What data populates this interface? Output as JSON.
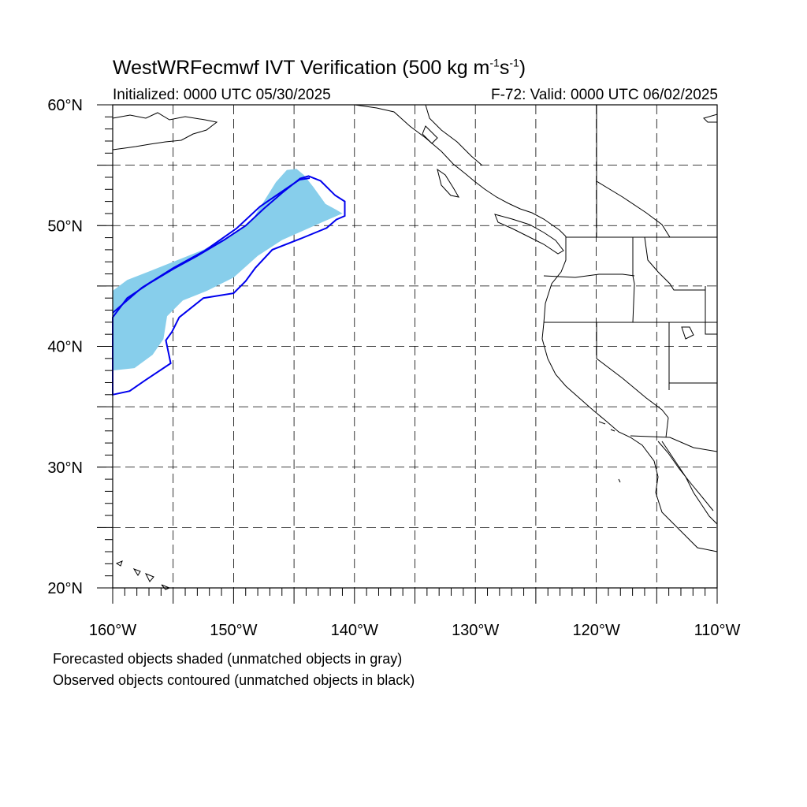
{
  "title": {
    "main": "WestWRFecmwf IVT Verification (500 kg m",
    "exp1": "-1",
    "mid": "s",
    "exp2": "-1",
    "close": ")"
  },
  "initialized": "Initialized: 0000 UTC 05/30/2025",
  "valid": "F-72: Valid: 0000 UTC 06/02/2025",
  "captions": [
    "Forecasted objects shaded (unmatched objects in gray)",
    "Observed objects contoured (unmatched objects in black)"
  ],
  "axes": {
    "lon_range": [
      -160,
      -110
    ],
    "lat_range": [
      20,
      60
    ],
    "lon_labels": [
      "160°W",
      "150°W",
      "140°W",
      "130°W",
      "120°W",
      "110°W"
    ],
    "lat_labels": [
      "60°N",
      "50°N",
      "40°N",
      "30°N",
      "20°N"
    ],
    "grid": "dashed every 5°"
  },
  "colors": {
    "forecast_shade": "#87ceeb",
    "observed_contour": "#0000ee",
    "coastline": "#000000"
  },
  "objects": {
    "forecast": {
      "label": "Forecasted objects shaded",
      "polygon_lonlat": [
        [
          -160,
          38.0
        ],
        [
          -160,
          44.6
        ],
        [
          -158.8,
          45.5
        ],
        [
          -157,
          46.2
        ],
        [
          -155,
          47.0
        ],
        [
          -152.5,
          48.0
        ],
        [
          -150,
          49.3
        ],
        [
          -148.5,
          50.4
        ],
        [
          -147.5,
          52.0
        ],
        [
          -146.5,
          53.6
        ],
        [
          -145.6,
          54.6
        ],
        [
          -144.8,
          54.7
        ],
        [
          -144.2,
          54.2
        ],
        [
          -143.4,
          53.2
        ],
        [
          -142.4,
          51.8
        ],
        [
          -141.5,
          51.3
        ],
        [
          -141.0,
          51.0
        ],
        [
          -142.4,
          50.4
        ],
        [
          -144.2,
          49.6
        ],
        [
          -146,
          48.8
        ],
        [
          -148,
          47.5
        ],
        [
          -150,
          45.7
        ],
        [
          -152.2,
          44.6
        ],
        [
          -154.2,
          43.8
        ],
        [
          -155.5,
          42.5
        ],
        [
          -155.8,
          40.6
        ],
        [
          -156.7,
          39.3
        ],
        [
          -158.2,
          38.2
        ],
        [
          -160,
          38.0
        ]
      ]
    },
    "observed": {
      "label": "Observed objects contoured",
      "polygon_lonlat": [
        [
          -160,
          42.4
        ],
        [
          -158.8,
          44.0
        ],
        [
          -157,
          45.2
        ],
        [
          -155,
          46.4
        ],
        [
          -153,
          47.5
        ],
        [
          -150.8,
          48.8
        ],
        [
          -149,
          50.0
        ],
        [
          -147.5,
          51.4
        ],
        [
          -146,
          52.7
        ],
        [
          -144.5,
          53.9
        ],
        [
          -143.8,
          54.1
        ],
        [
          -142.8,
          53.7
        ],
        [
          -141.6,
          52.5
        ],
        [
          -140.8,
          52.0
        ],
        [
          -140.8,
          50.8
        ],
        [
          -141.5,
          50.5
        ],
        [
          -142.3,
          49.8
        ],
        [
          -144.5,
          48.9
        ],
        [
          -146.8,
          48.0
        ],
        [
          -148.2,
          46.5
        ],
        [
          -149,
          45.4
        ],
        [
          -150,
          44.4
        ],
        [
          -152.5,
          44.0
        ],
        [
          -154.5,
          42.4
        ],
        [
          -155.1,
          41.2
        ],
        [
          -155.6,
          40.5
        ],
        [
          -155.2,
          38.6
        ],
        [
          -157.3,
          37.2
        ],
        [
          -158.6,
          36.3
        ],
        [
          -160,
          36.0
        ]
      ]
    }
  }
}
